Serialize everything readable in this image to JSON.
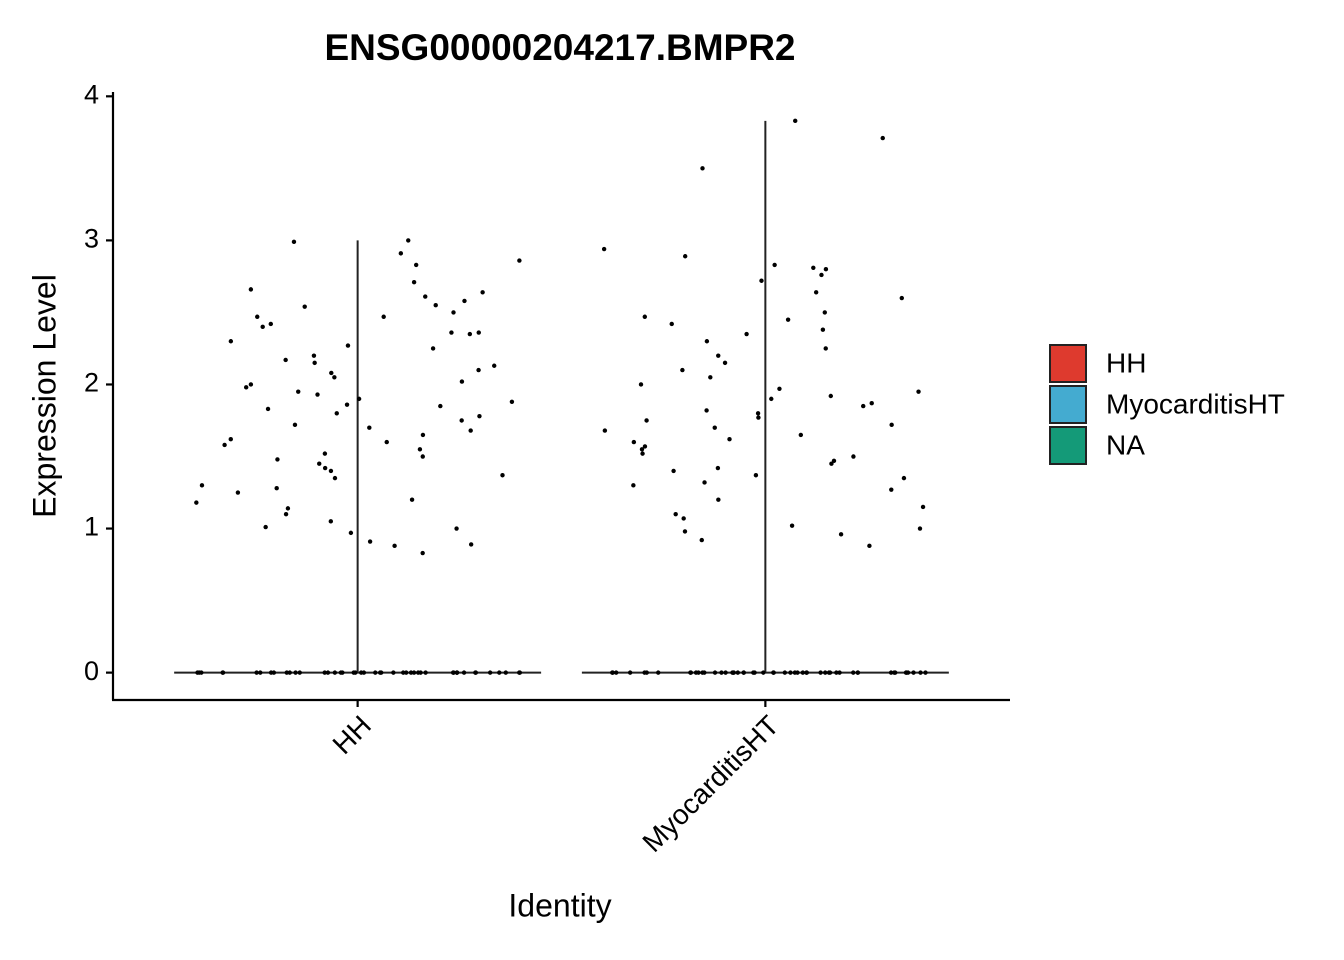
{
  "chart_data": {
    "type": "violin",
    "title": "ENSG00000204217.BMPR2",
    "x_label": "Identity",
    "y_label": "Expression Level",
    "categories": [
      "HH",
      "MyocarditisHT"
    ],
    "ylim": [
      -0.19,
      4.03
    ],
    "yticks": [
      0,
      1,
      2,
      3,
      4
    ],
    "legend_position": "right",
    "series": [
      {
        "name": "HH",
        "color": "#de3a2e",
        "values": [
          3.0,
          2.99,
          2.91,
          2.86,
          2.83,
          2.71,
          2.66,
          2.64,
          2.61,
          2.58,
          2.55,
          2.54,
          2.5,
          2.47,
          2.47,
          2.42,
          2.4,
          2.36,
          2.36,
          2.35,
          2.3,
          2.27,
          2.25,
          2.2,
          2.17,
          2.15,
          2.13,
          2.1,
          2.08,
          2.05,
          2.02,
          2.0,
          1.98,
          1.95,
          1.93,
          1.9,
          1.88,
          1.86,
          1.85,
          1.83,
          1.8,
          1.78,
          1.75,
          1.72,
          1.7,
          1.68,
          1.65,
          1.62,
          1.6,
          1.58,
          1.55,
          1.52,
          1.5,
          1.48,
          1.45,
          1.42,
          1.4,
          1.37,
          1.35,
          1.3,
          1.28,
          1.25,
          1.2,
          1.18,
          1.14,
          1.1,
          1.05,
          1.01,
          1.0,
          0.97,
          0.91,
          0.89,
          0.88,
          0.83,
          0,
          0,
          0,
          0,
          0,
          0,
          0,
          0,
          0,
          0,
          0,
          0,
          0,
          0,
          0,
          0,
          0,
          0,
          0,
          0,
          0,
          0,
          0,
          0,
          0,
          0,
          0,
          0,
          0,
          0,
          0,
          0,
          0,
          0,
          0,
          0,
          0,
          0,
          0,
          0,
          0,
          0,
          0,
          0,
          0,
          0
        ]
      },
      {
        "name": "MyocarditisHT",
        "color": "#44abd0",
        "values": [
          3.83,
          3.71,
          3.5,
          2.94,
          2.89,
          2.83,
          2.81,
          2.8,
          2.76,
          2.72,
          2.64,
          2.6,
          2.5,
          2.47,
          2.45,
          2.42,
          2.38,
          2.35,
          2.3,
          2.25,
          2.2,
          2.15,
          2.1,
          2.05,
          2.0,
          1.97,
          1.95,
          1.92,
          1.9,
          1.87,
          1.85,
          1.82,
          1.8,
          1.77,
          1.75,
          1.72,
          1.7,
          1.68,
          1.65,
          1.62,
          1.6,
          1.57,
          1.55,
          1.52,
          1.5,
          1.47,
          1.45,
          1.42,
          1.4,
          1.37,
          1.35,
          1.32,
          1.3,
          1.27,
          1.2,
          1.15,
          1.1,
          1.07,
          1.02,
          1.0,
          0.98,
          0.96,
          0.92,
          0.88,
          0,
          0,
          0,
          0,
          0,
          0,
          0,
          0,
          0,
          0,
          0,
          0,
          0,
          0,
          0,
          0,
          0,
          0,
          0,
          0,
          0,
          0,
          0,
          0,
          0,
          0,
          0,
          0,
          0,
          0,
          0,
          0,
          0,
          0,
          0,
          0,
          0,
          0,
          0,
          0,
          0,
          0,
          0,
          0,
          0,
          0,
          0,
          0,
          0,
          0,
          0,
          0
        ]
      },
      {
        "name": "NA",
        "color": "#149a78",
        "values": []
      }
    ]
  }
}
